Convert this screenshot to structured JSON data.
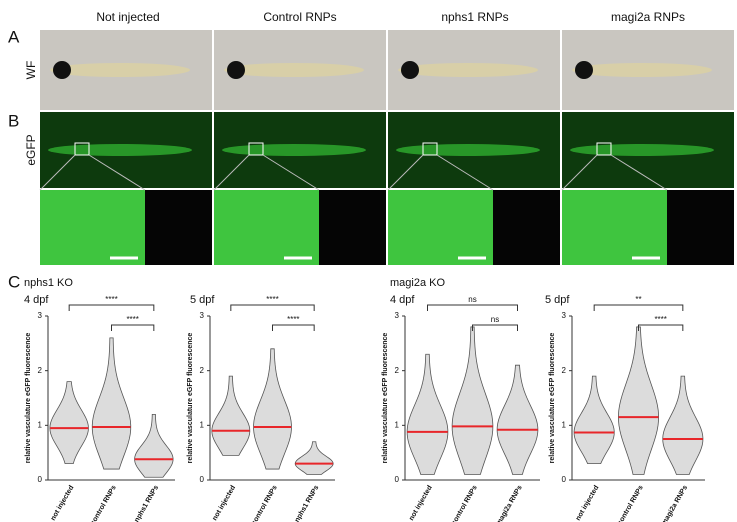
{
  "figure": {
    "panels": [
      "A",
      "B",
      "C"
    ],
    "columns": [
      "Not injected",
      "Control RNPs",
      "nphs1 RNPs",
      "magi2a RNPs"
    ],
    "rows": [
      "WF",
      "eGFP"
    ],
    "groups": [
      "nphs1 KO",
      "magi2a KO"
    ]
  },
  "chart_data": [
    {
      "type": "violin",
      "title": "4 dpf",
      "ylabel": "relative vasculature eGFP fluorescence",
      "categories": [
        "not injected",
        "control RNPs",
        "nphs1 RNPs"
      ],
      "values": [
        0.95,
        0.97,
        0.38
      ],
      "min": [
        0.3,
        0.2,
        0.05
      ],
      "max": [
        1.8,
        2.6,
        1.2
      ],
      "ylim": [
        0,
        3
      ],
      "yticks": [
        0,
        1,
        2,
        3
      ],
      "median_color": "#e8262a",
      "brackets": [
        {
          "between": [
            "not injected",
            "nphs1 RNPs"
          ],
          "label": "****"
        },
        {
          "between": [
            "control RNPs",
            "nphs1 RNPs"
          ],
          "label": "****"
        }
      ]
    },
    {
      "type": "violin",
      "title": "5 dpf",
      "ylabel": "relative vasculature eGFP fluorescence",
      "categories": [
        "not injected",
        "control RNPs",
        "nphs1 RNPs"
      ],
      "values": [
        0.9,
        0.97,
        0.3
      ],
      "min": [
        0.45,
        0.2,
        0.1
      ],
      "max": [
        1.9,
        2.4,
        0.7
      ],
      "ylim": [
        0,
        3
      ],
      "yticks": [
        0,
        1,
        2,
        3
      ],
      "median_color": "#e8262a",
      "brackets": [
        {
          "between": [
            "not injected",
            "nphs1 RNPs"
          ],
          "label": "****"
        },
        {
          "between": [
            "control RNPs",
            "nphs1 RNPs"
          ],
          "label": "****"
        }
      ]
    },
    {
      "type": "violin",
      "title": "4 dpf",
      "ylabel": "relative vasculature eGFP fluorescence",
      "categories": [
        "not injected",
        "control RNPs",
        "magi2a RNPs"
      ],
      "values": [
        0.88,
        0.98,
        0.92
      ],
      "min": [
        0.1,
        0.1,
        0.1
      ],
      "max": [
        2.3,
        2.8,
        2.1
      ],
      "ylim": [
        0,
        3
      ],
      "yticks": [
        0,
        1,
        2,
        3
      ],
      "median_color": "#e8262a",
      "brackets": [
        {
          "between": [
            "not injected",
            "magi2a RNPs"
          ],
          "label": "ns"
        },
        {
          "between": [
            "control RNPs",
            "magi2a RNPs"
          ],
          "label": "ns"
        }
      ]
    },
    {
      "type": "violin",
      "title": "5 dpf",
      "ylabel": "relative vasculature eGFP fluorescence",
      "categories": [
        "not injected",
        "control RNPs",
        "magi2a RNPs"
      ],
      "values": [
        0.87,
        1.15,
        0.75
      ],
      "min": [
        0.3,
        0.1,
        0.1
      ],
      "max": [
        1.9,
        2.8,
        1.9
      ],
      "ylim": [
        0,
        3
      ],
      "yticks": [
        0,
        1,
        2,
        3
      ],
      "median_color": "#e8262a",
      "brackets": [
        {
          "between": [
            "not injected",
            "magi2a RNPs"
          ],
          "label": "**"
        },
        {
          "between": [
            "control RNPs",
            "magi2a RNPs"
          ],
          "label": "****"
        }
      ]
    }
  ]
}
